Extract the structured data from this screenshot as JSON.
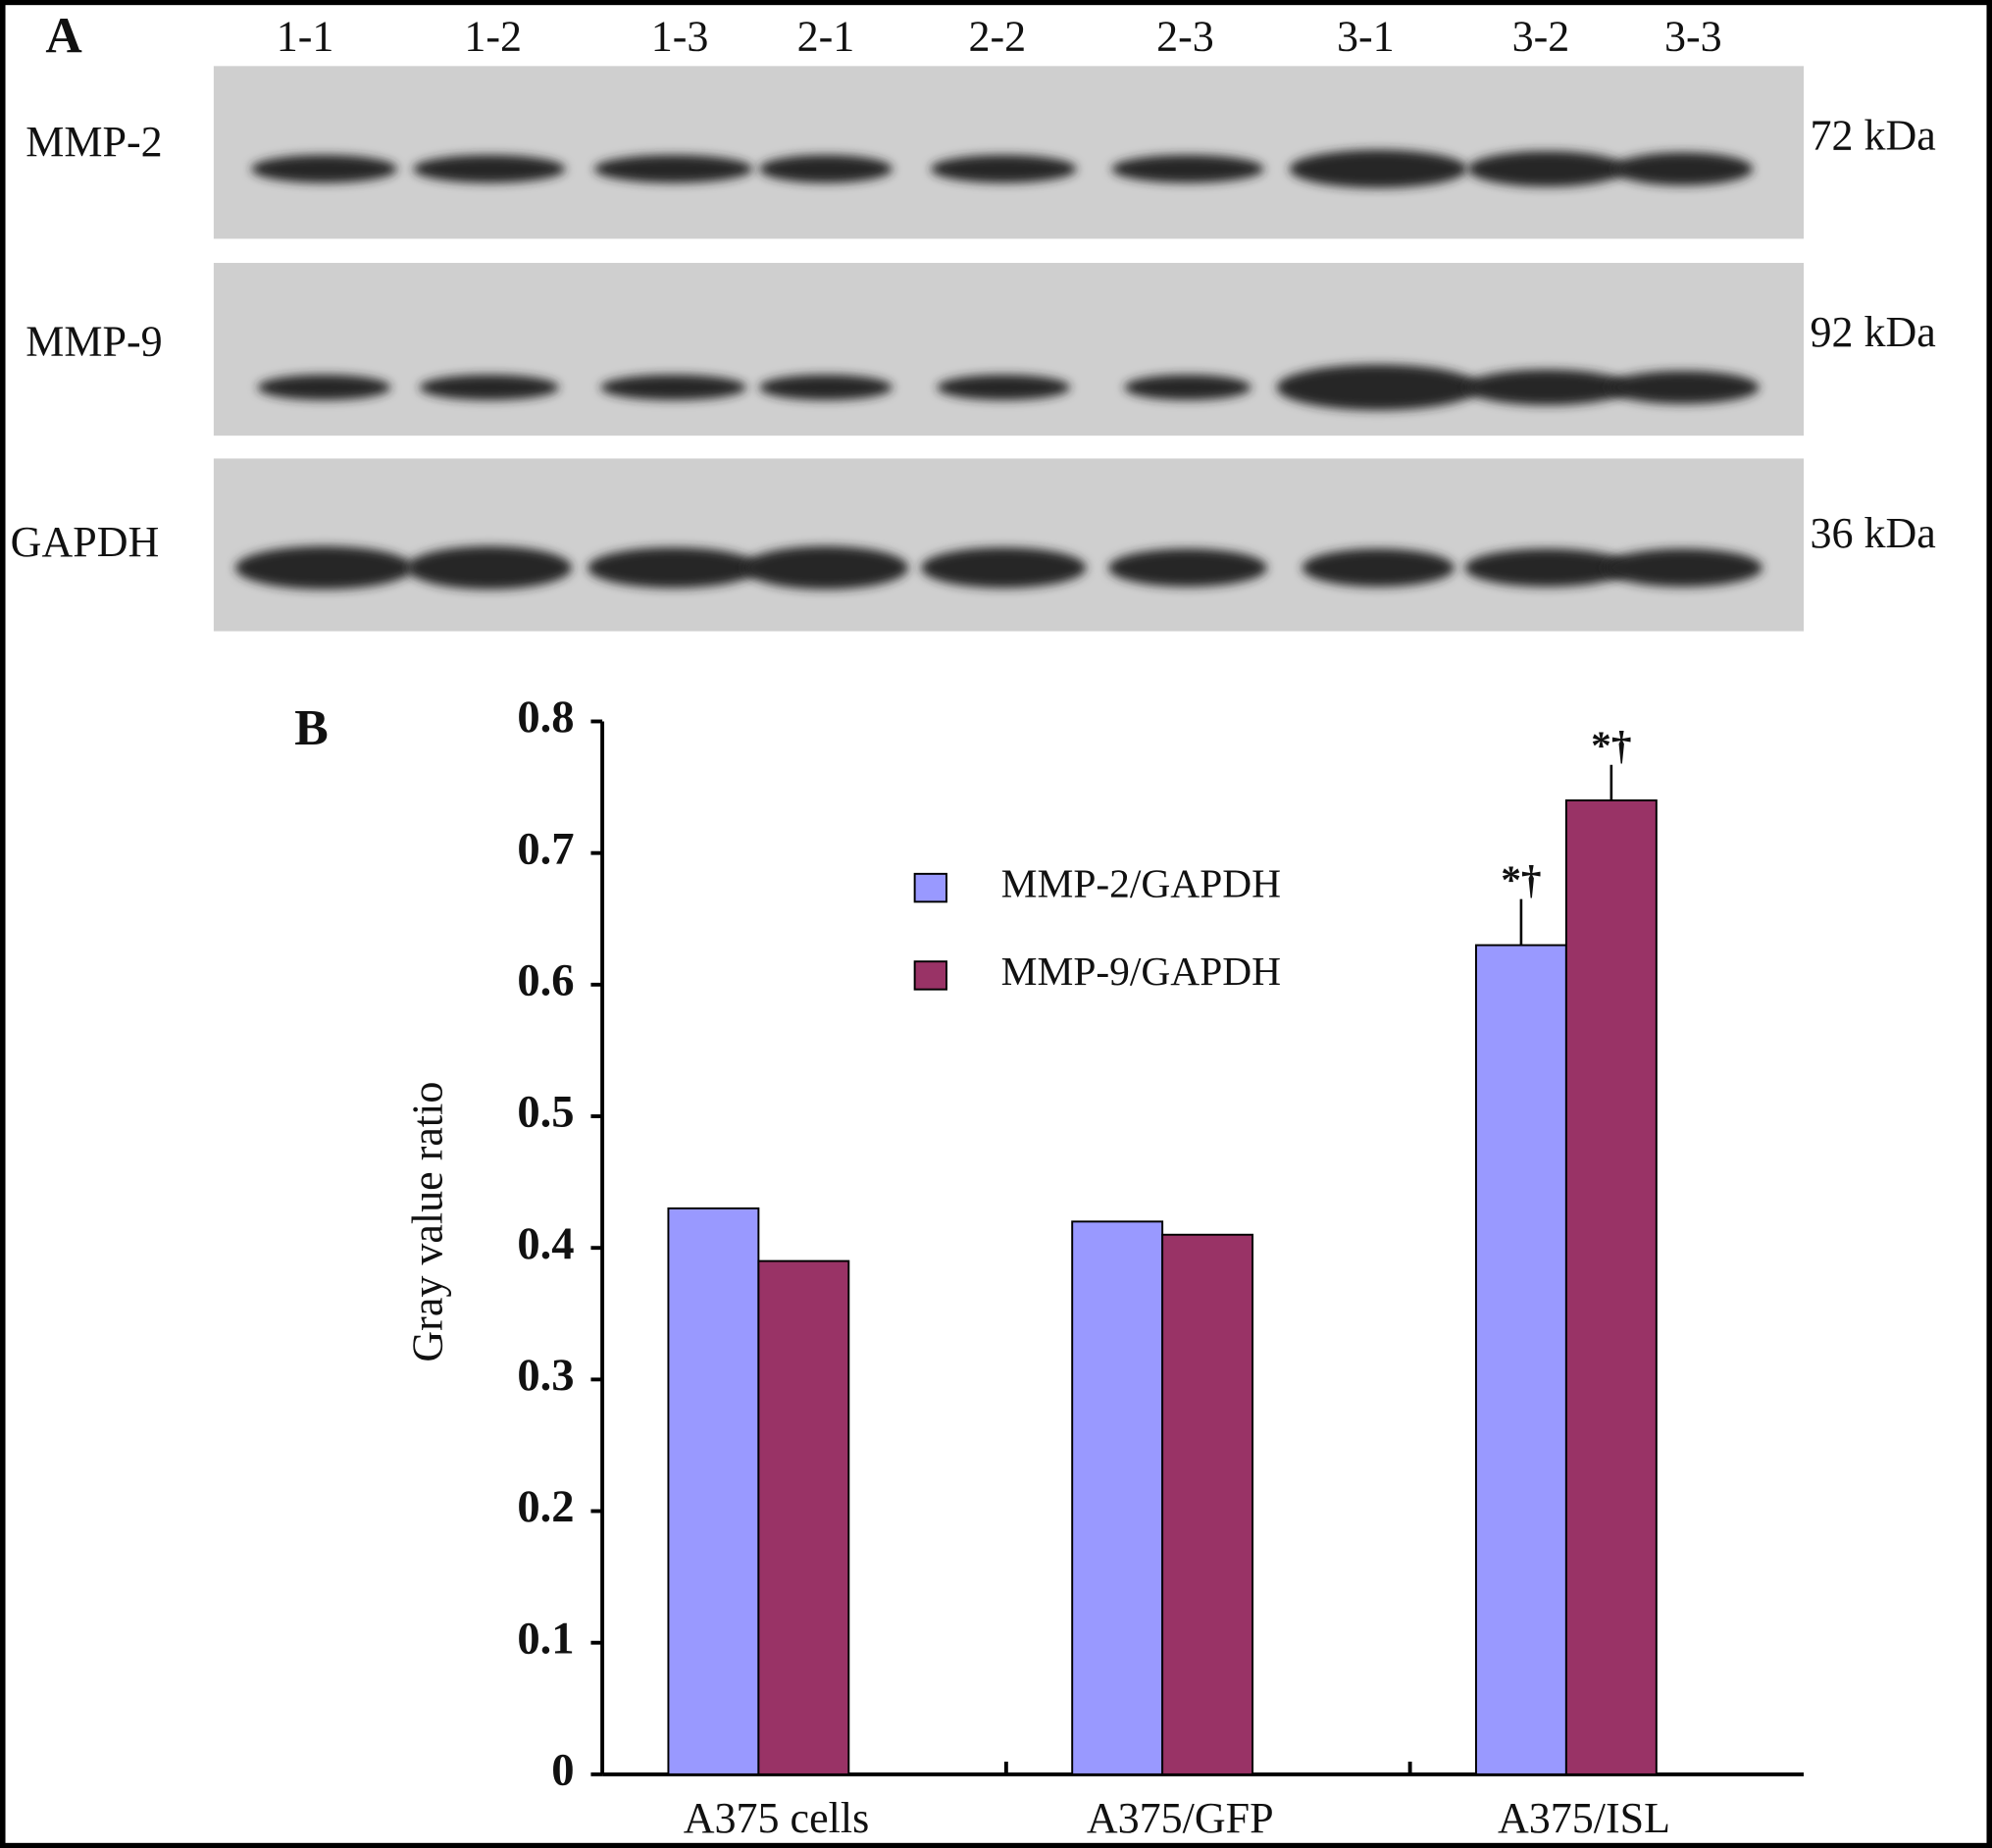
{
  "panel_a": {
    "label": "A",
    "lanes": [
      "1-1",
      "1-2",
      "1-3",
      "2-1",
      "2-2",
      "2-3",
      "3-1",
      "3-2",
      "3-3"
    ],
    "rows": [
      {
        "name": "MMP-2",
        "size": "72 kDa"
      },
      {
        "name": "MMP-9",
        "size": "92 kDa"
      },
      {
        "name": "GAPDH",
        "size": "36 kDa"
      }
    ]
  },
  "chart_data": {
    "type": "bar",
    "panel_label": "B",
    "y_label": "Gray value ratio",
    "categories": [
      "A375 cells",
      "A375/GFP",
      "A375/ISL"
    ],
    "series": [
      {
        "name": "MMP-2/GAPDH",
        "color": "#9999ff",
        "values": [
          0.43,
          0.42,
          0.63
        ],
        "errors": [
          null,
          null,
          0.035
        ],
        "annotations": [
          null,
          null,
          "*†"
        ]
      },
      {
        "name": "MMP-9/GAPDH",
        "color": "#993366",
        "values": [
          0.39,
          0.41,
          0.74
        ],
        "errors": [
          null,
          null,
          0.027
        ],
        "annotations": [
          null,
          null,
          "*†"
        ]
      }
    ],
    "ylim": [
      0,
      0.8
    ],
    "yticks": [
      0,
      0.1,
      0.2,
      0.3,
      0.4,
      0.5,
      0.6,
      0.7,
      0.8
    ]
  }
}
